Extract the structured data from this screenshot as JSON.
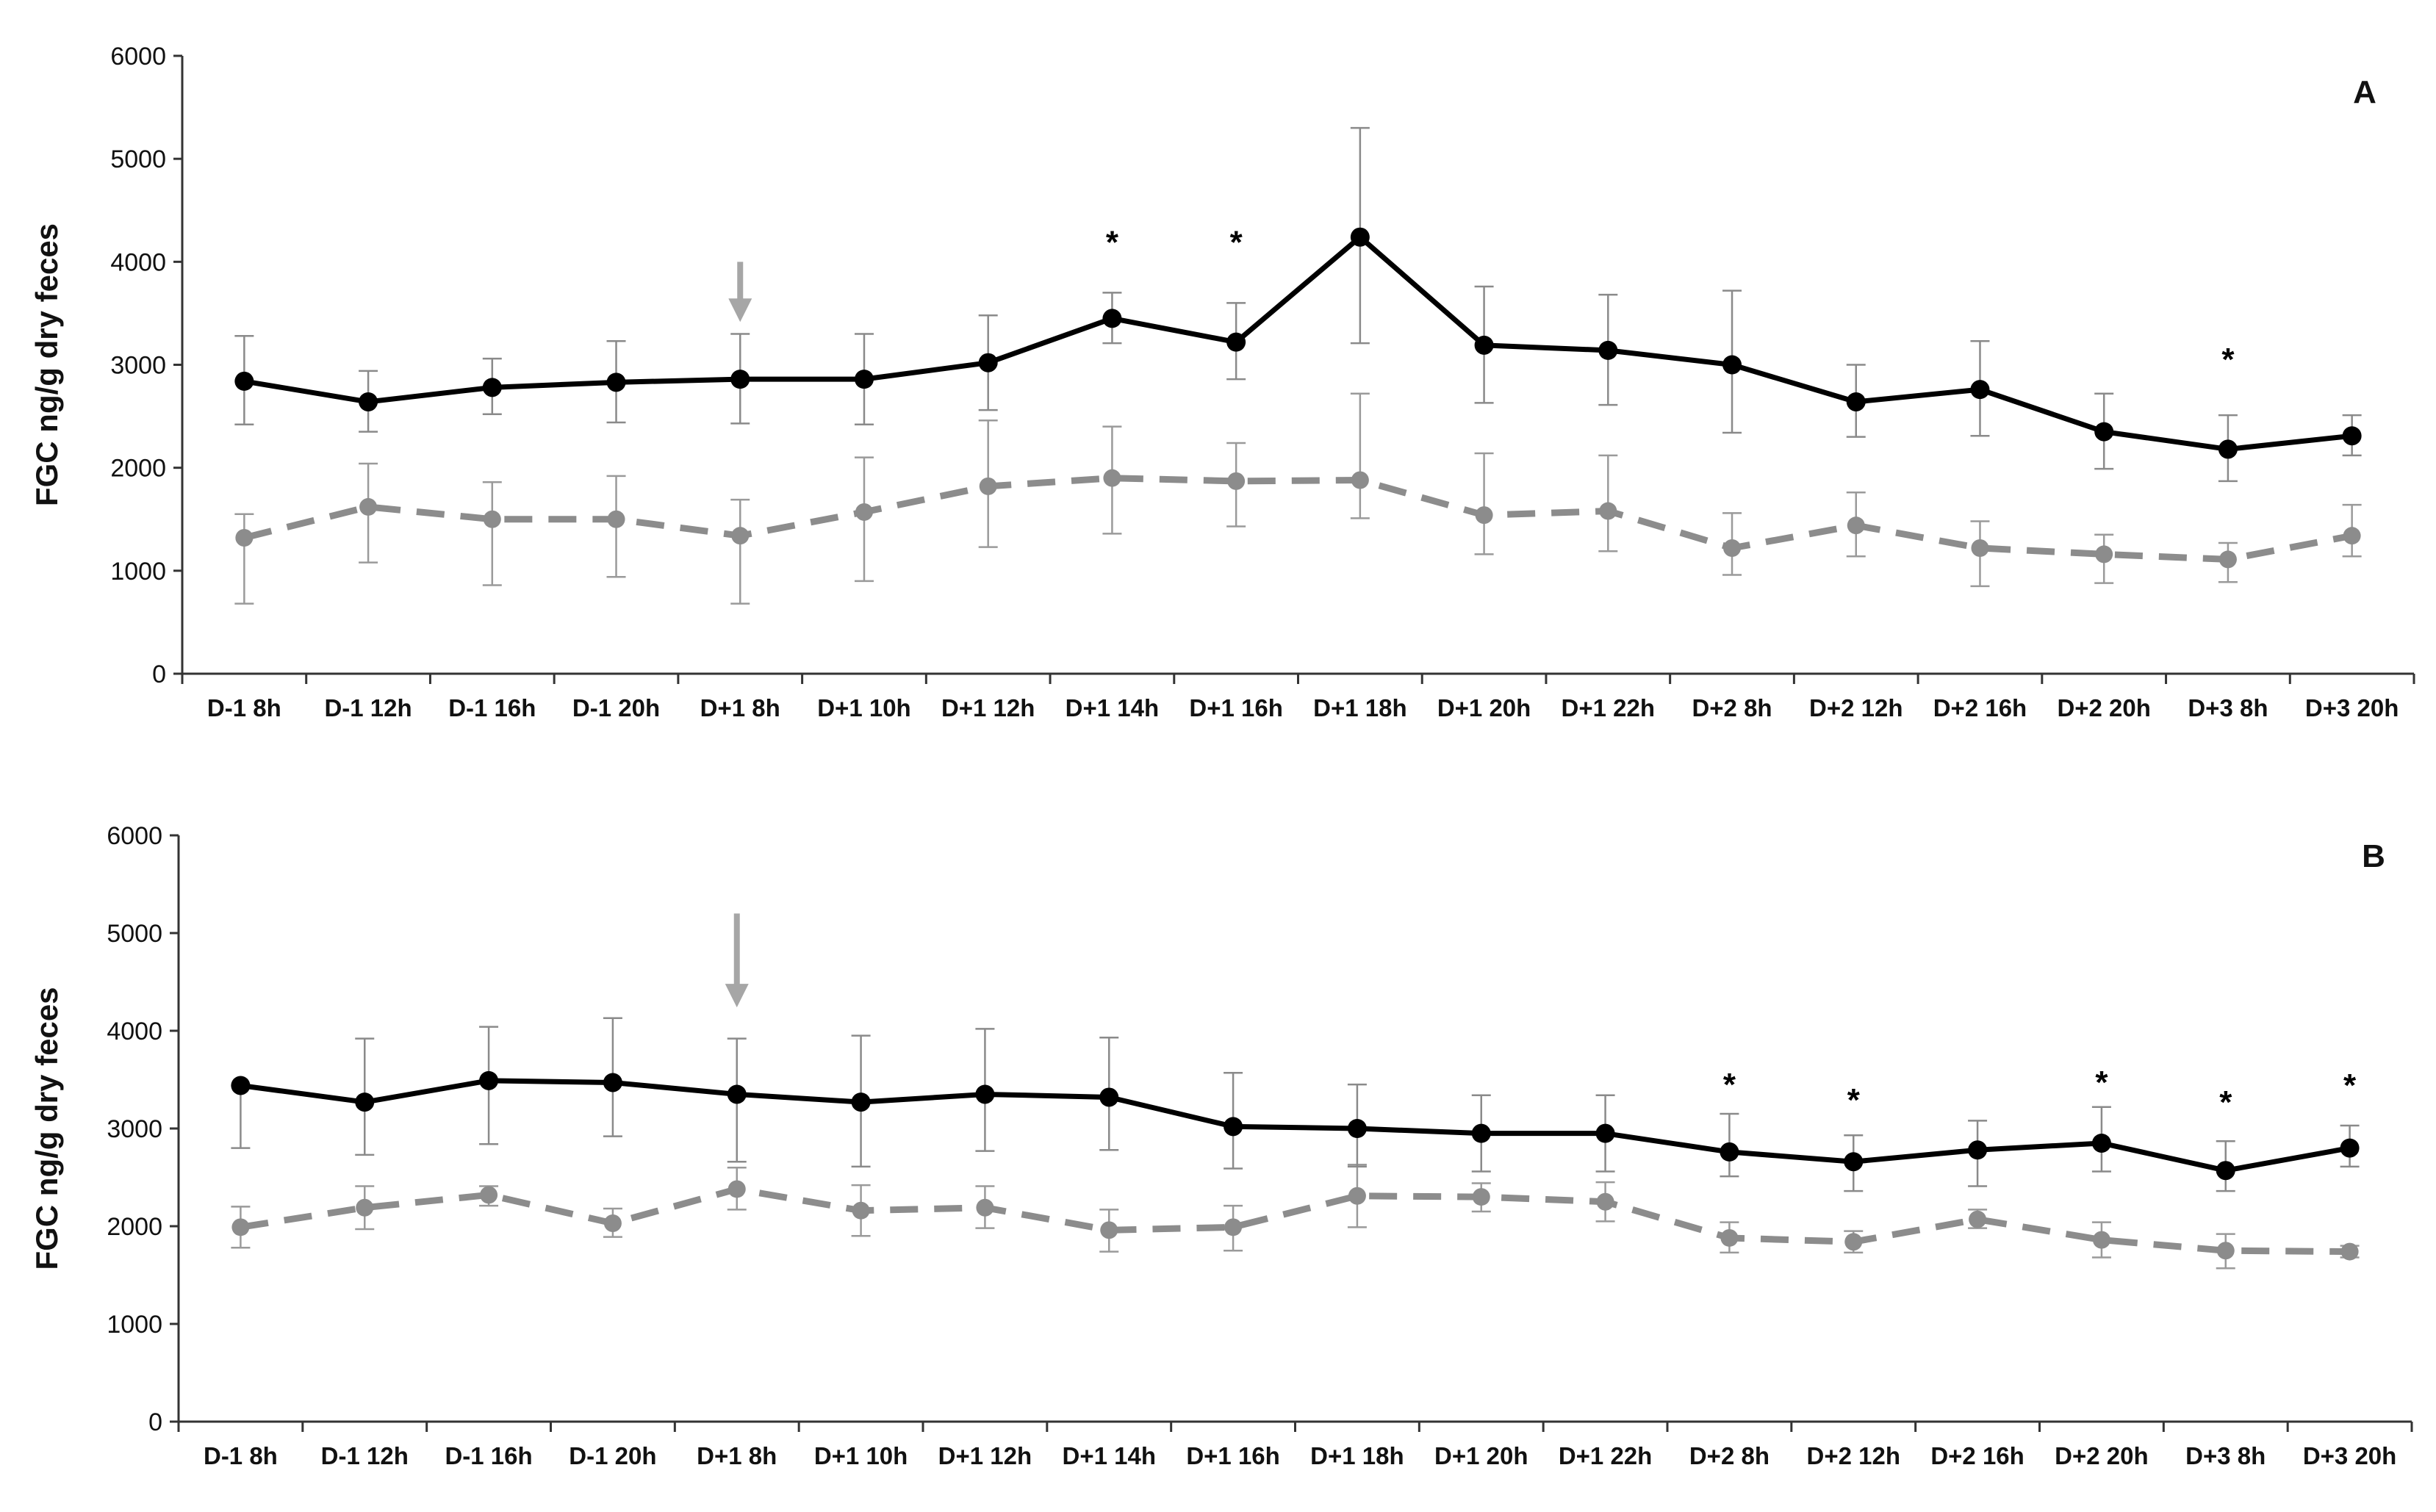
{
  "chart_data": [
    {
      "type": "line",
      "panel_label": "A",
      "ylabel": "FGC ng/g dry feces",
      "ylim": [
        0,
        6000
      ],
      "yticks": [
        0,
        1000,
        2000,
        3000,
        4000,
        5000,
        6000
      ],
      "categories": [
        "D-1 8h",
        "D-1 12h",
        "D-1 16h",
        "D-1 20h",
        "D+1 8h",
        "D+1 10h",
        "D+1 12h",
        "D+1 14h",
        "D+1 16h",
        "D+1 18h",
        "D+1 20h",
        "D+1 22h",
        "D+2 8h",
        "D+2 12h",
        "D+2 16h",
        "D+2 20h",
        "D+3 8h",
        "D+3 20h"
      ],
      "series": [
        {
          "style": "solid",
          "color": "#000000",
          "values": [
            2840,
            2640,
            2780,
            2830,
            2860,
            2860,
            3020,
            3450,
            3220,
            4240,
            3190,
            3140,
            3000,
            2640,
            2760,
            2350,
            2180,
            2310
          ],
          "err_low": [
            2420,
            2350,
            2520,
            2440,
            2430,
            2420,
            2560,
            3210,
            2860,
            3210,
            2630,
            2610,
            2340,
            2300,
            2310,
            1990,
            1870,
            2120
          ],
          "err_high": [
            3280,
            2940,
            3060,
            3230,
            3300,
            3300,
            3480,
            3700,
            3600,
            5300,
            3760,
            3680,
            3720,
            3000,
            3230,
            2720,
            2510,
            2510
          ]
        },
        {
          "style": "dashed",
          "color": "#8c8c8c",
          "values": [
            1320,
            1620,
            1500,
            1500,
            1340,
            1570,
            1820,
            1900,
            1870,
            1880,
            1540,
            1580,
            1220,
            1440,
            1220,
            1160,
            1110,
            1340
          ],
          "err_low": [
            680,
            1080,
            860,
            940,
            680,
            900,
            1230,
            1360,
            1430,
            1510,
            1160,
            1190,
            960,
            1140,
            850,
            880,
            890,
            1140
          ],
          "err_high": [
            1550,
            2040,
            1860,
            1920,
            1690,
            2100,
            2460,
            2400,
            2240,
            2720,
            2140,
            2120,
            1560,
            1760,
            1480,
            1350,
            1270,
            1640
          ]
        }
      ],
      "significance": [
        {
          "category": "D+1 14h",
          "symbol": "*",
          "value": 4200
        },
        {
          "category": "D+1 16h",
          "symbol": "*",
          "value": 4200
        },
        {
          "category": "D+3 8h",
          "symbol": "*",
          "value": 3060
        }
      ],
      "arrow": {
        "category": "D+1 8h",
        "from": 4000,
        "to": 3530,
        "color": "#a6a6a6"
      }
    },
    {
      "type": "line",
      "panel_label": "B",
      "ylabel": "FGC ng/g dry feces",
      "ylim": [
        0,
        6000
      ],
      "yticks": [
        0,
        1000,
        2000,
        3000,
        4000,
        5000,
        6000
      ],
      "categories": [
        "D-1 8h",
        "D-1 12h",
        "D-1 16h",
        "D-1 20h",
        "D+1 8h",
        "D+1 10h",
        "D+1 12h",
        "D+1 14h",
        "D+1 16h",
        "D+1 18h",
        "D+1 20h",
        "D+1 22h",
        "D+2 8h",
        "D+2 12h",
        "D+2 16h",
        "D+2 20h",
        "D+3 8h",
        "D+3 20h"
      ],
      "series": [
        {
          "style": "solid",
          "color": "#000000",
          "values": [
            3440,
            3270,
            3490,
            3470,
            3350,
            3270,
            3350,
            3320,
            3020,
            3000,
            2950,
            2950,
            2760,
            2660,
            2780,
            2850,
            2570,
            2800
          ],
          "err_low": [
            2800,
            2730,
            2840,
            2920,
            2660,
            2610,
            2770,
            2780,
            2590,
            2610,
            2560,
            2560,
            2510,
            2360,
            2410,
            2560,
            2360,
            2610
          ],
          "err_high": [
            3440,
            3920,
            4040,
            4130,
            3920,
            3950,
            4020,
            3930,
            3570,
            3450,
            3340,
            3340,
            3150,
            2930,
            3080,
            3220,
            2870,
            3030
          ]
        },
        {
          "style": "dashed",
          "color": "#8c8c8c",
          "values": [
            1990,
            2190,
            2320,
            2030,
            2380,
            2160,
            2190,
            1960,
            1990,
            2310,
            2300,
            2250,
            1880,
            1840,
            2070,
            1860,
            1750,
            1740
          ],
          "err_low": [
            1780,
            1970,
            2210,
            1890,
            2170,
            1900,
            1980,
            1740,
            1750,
            1990,
            2150,
            2050,
            1730,
            1730,
            1980,
            1680,
            1570,
            1680
          ],
          "err_high": [
            2200,
            2410,
            2410,
            2180,
            2600,
            2420,
            2410,
            2170,
            2210,
            2630,
            2440,
            2450,
            2040,
            1950,
            2170,
            2040,
            1920,
            1800
          ]
        }
      ],
      "significance": [
        {
          "category": "D+2 8h",
          "symbol": "*",
          "value": 3460
        },
        {
          "category": "D+2 12h",
          "symbol": "*",
          "value": 3300
        },
        {
          "category": "D+2 20h",
          "symbol": "*",
          "value": 3480
        },
        {
          "category": "D+3 8h",
          "symbol": "*",
          "value": 3280
        },
        {
          "category": "D+3 20h",
          "symbol": "*",
          "value": 3450
        }
      ],
      "arrow": {
        "category": "D+1 8h",
        "from": 5200,
        "to": 4360,
        "color": "#a6a6a6"
      }
    }
  ]
}
